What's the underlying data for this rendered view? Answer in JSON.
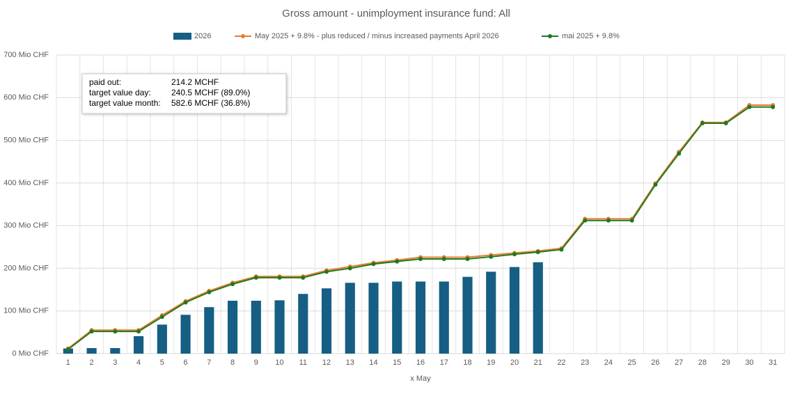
{
  "chart_data": {
    "type": "bar",
    "title": "Gross amount - unimployment insurance fund: All",
    "x_label": "x May",
    "categories": [
      1,
      2,
      3,
      4,
      5,
      6,
      7,
      8,
      9,
      10,
      11,
      12,
      13,
      14,
      15,
      16,
      17,
      18,
      19,
      20,
      21,
      22,
      23,
      24,
      25,
      26,
      27,
      28,
      29,
      30,
      31
    ],
    "series": [
      {
        "name": "2026",
        "type": "bar",
        "color": "#165e83",
        "values": [
          12,
          13,
          13,
          41,
          68,
          91,
          109,
          124,
          124,
          125,
          140,
          153,
          166,
          166,
          169,
          169,
          169,
          180,
          192,
          203,
          214.2,
          null,
          null,
          null,
          null,
          null,
          null,
          null,
          null,
          null,
          null
        ]
      },
      {
        "name": "May 2025 + 9.8% -  plus reduced / minus increased payments April 2026",
        "type": "line",
        "color": "#e97c30",
        "values": [
          12,
          55,
          55,
          55,
          90,
          123,
          147,
          166,
          181,
          181,
          181,
          195,
          204,
          213,
          219,
          226,
          226,
          226,
          231,
          236,
          240.5,
          247,
          316,
          316,
          316,
          399,
          473,
          542,
          542,
          582.6,
          582.6
        ]
      },
      {
        "name": "mai 2025 + 9.8%",
        "type": "line",
        "color": "#1e7a1e",
        "values": [
          10,
          52,
          52,
          52,
          86,
          120,
          144,
          163,
          178,
          178,
          178,
          192,
          200,
          210,
          216,
          222,
          222,
          222,
          227,
          233,
          238,
          244,
          312,
          312,
          312,
          396,
          469,
          540,
          540,
          578,
          578
        ]
      }
    ],
    "ylim": [
      0,
      700
    ],
    "yticks": [
      {
        "value": 0,
        "label": "0 Mio CHF"
      },
      {
        "value": 100,
        "label": "100 Mio CHF"
      },
      {
        "value": 200,
        "label": "200 Mio CHF"
      },
      {
        "value": 300,
        "label": "300 Mio CHF"
      },
      {
        "value": 400,
        "label": "400 Mio CHF"
      },
      {
        "value": 500,
        "label": "500 Mio CHF"
      },
      {
        "value": 600,
        "label": "600 Mio CHF"
      },
      {
        "value": 700,
        "label": "700 Mio CHF"
      }
    ],
    "grid": true,
    "legend": "top",
    "annotations": [
      {
        "label": "paid out:",
        "value": "214.2 MCHF"
      },
      {
        "label": "target value day:",
        "value": "240.5 MCHF (89.0%)"
      },
      {
        "label": "target value month:",
        "value": "582.6 MCHF (36.8%)"
      }
    ]
  }
}
